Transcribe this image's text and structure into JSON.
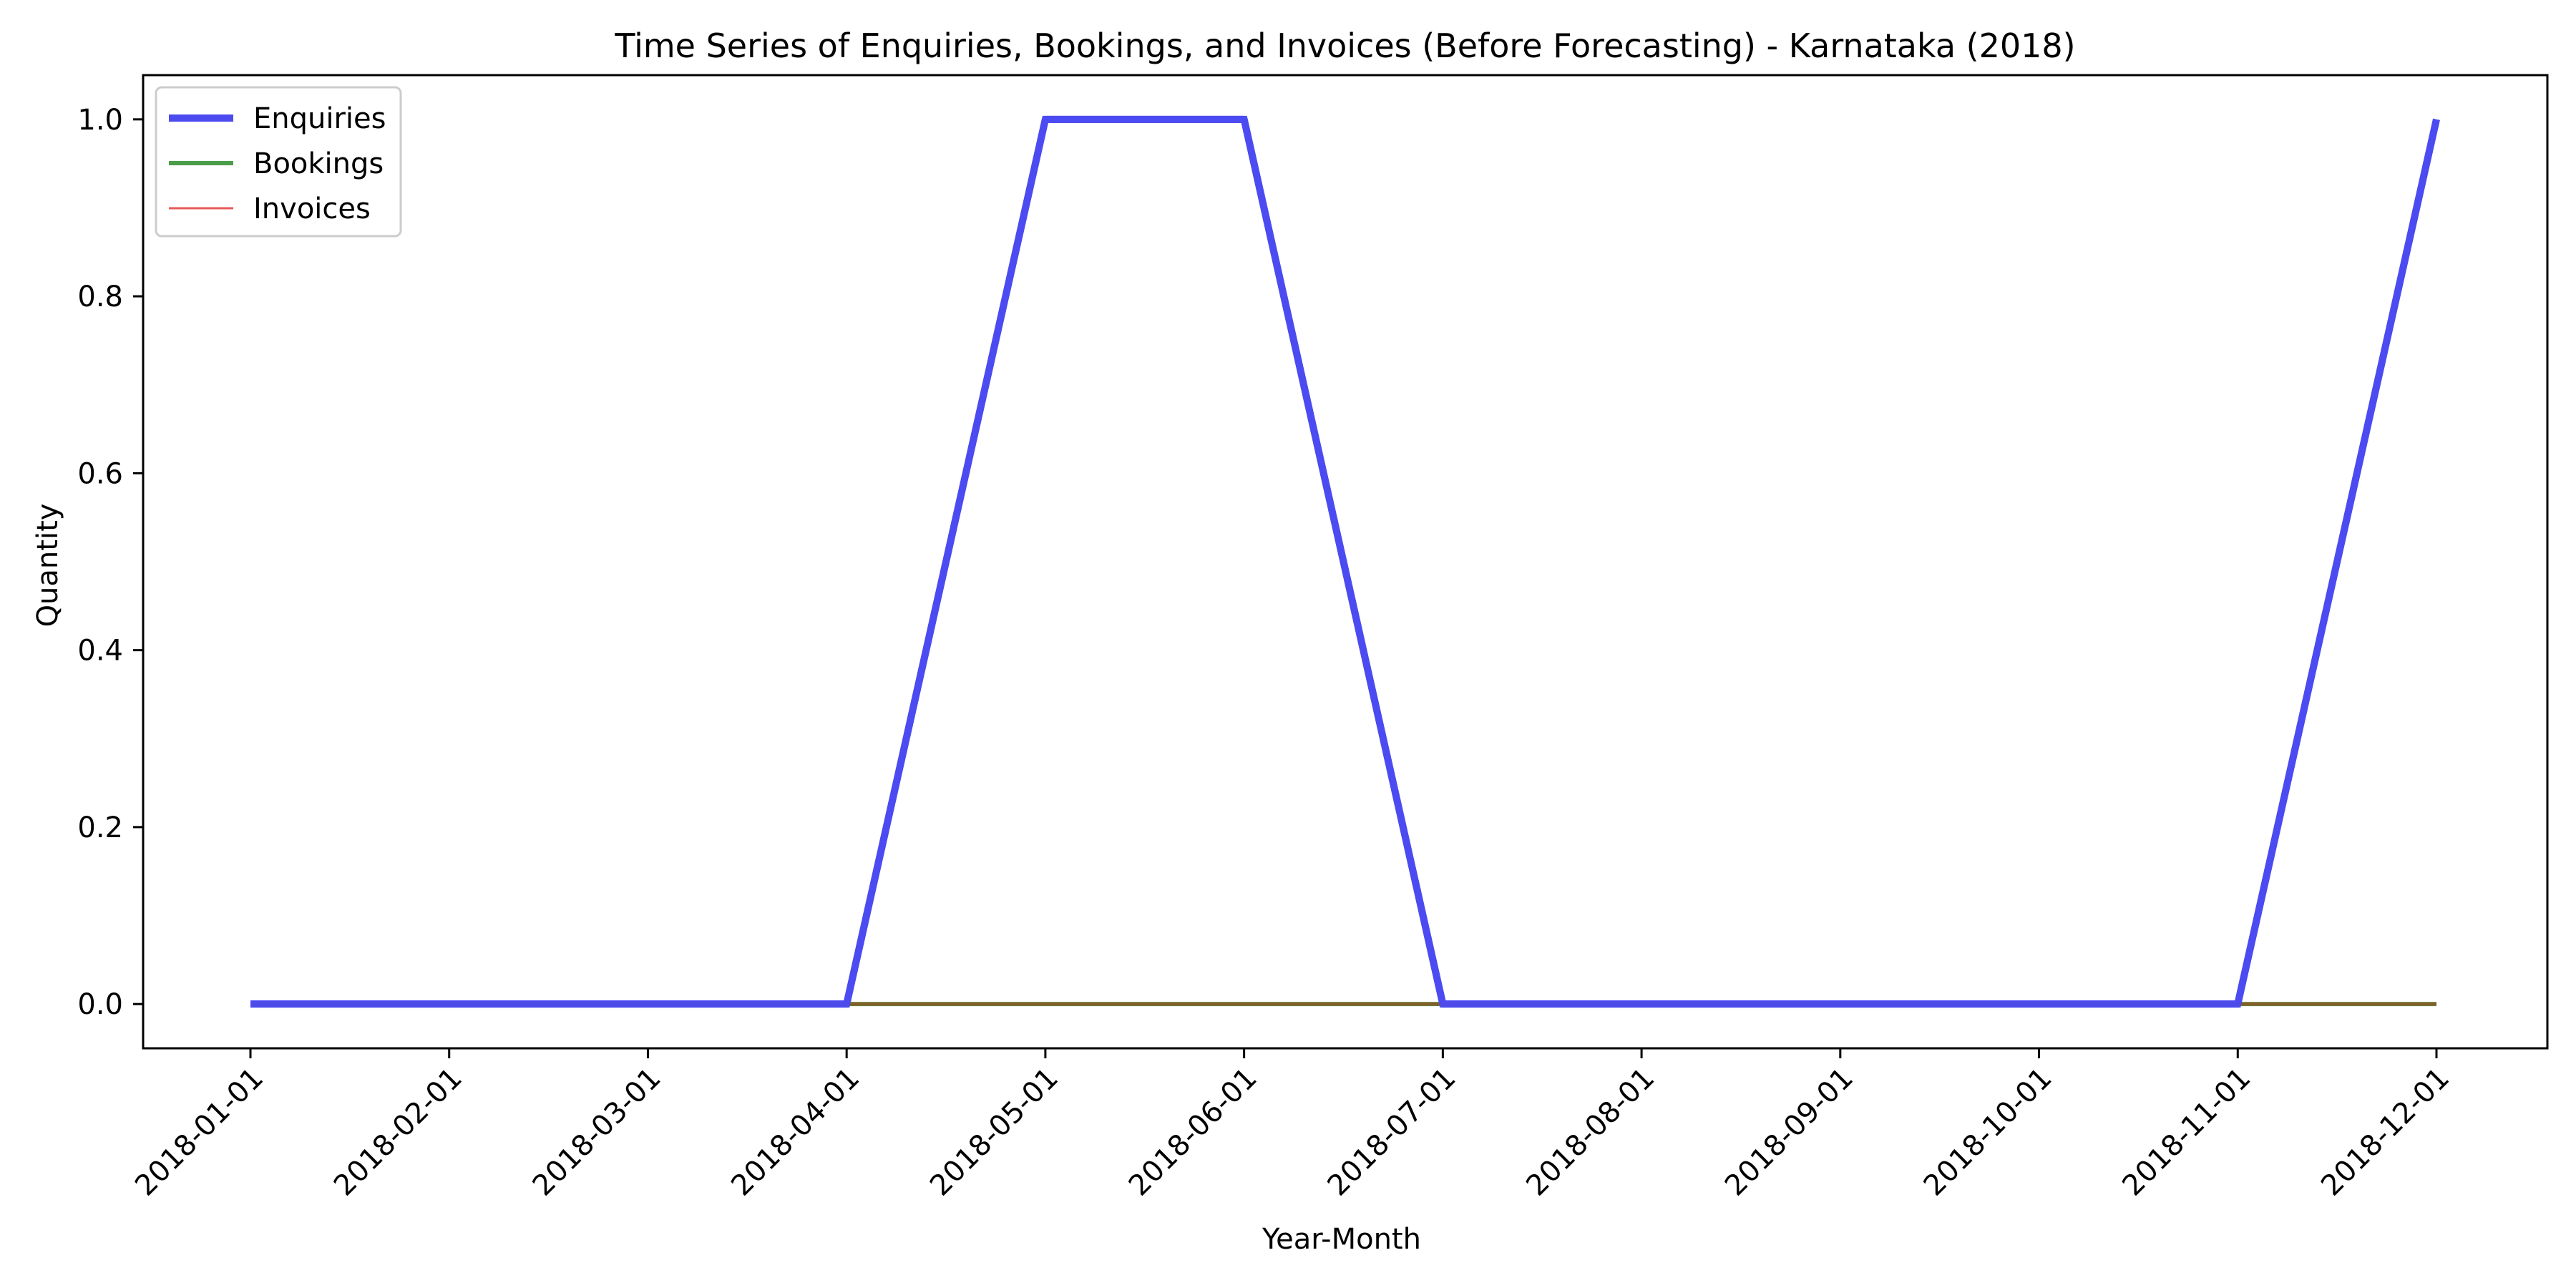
{
  "chart_data": {
    "type": "line",
    "title": "Time Series of Enquiries, Bookings, and Invoices (Before Forecasting) - Karnataka (2018)",
    "xlabel": "Year-Month",
    "ylabel": "Quantity",
    "x": [
      "2018-01-01",
      "2018-02-01",
      "2018-03-01",
      "2018-04-01",
      "2018-05-01",
      "2018-06-01",
      "2018-07-01",
      "2018-08-01",
      "2018-09-01",
      "2018-10-01",
      "2018-11-01",
      "2018-12-01"
    ],
    "yticks": [
      "0.0",
      "0.2",
      "0.4",
      "0.6",
      "0.8",
      "1.0"
    ],
    "ylim": [
      -0.05,
      1.05
    ],
    "grid": false,
    "legend_position": "upper-left",
    "series": [
      {
        "name": "Enquiries",
        "color": "#4b4bf0",
        "values": [
          0,
          0,
          0,
          0,
          1,
          1,
          0,
          0,
          0,
          0,
          0,
          1
        ]
      },
      {
        "name": "Bookings",
        "color": "#4a9e4a",
        "values": [
          0,
          0,
          0,
          0,
          0,
          0,
          0,
          0,
          0,
          0,
          0,
          0
        ]
      },
      {
        "name": "Invoices",
        "color": "#e85a5a",
        "values": [
          0,
          0,
          0,
          0,
          0,
          0,
          0,
          0,
          0,
          0,
          0,
          0
        ]
      }
    ]
  }
}
